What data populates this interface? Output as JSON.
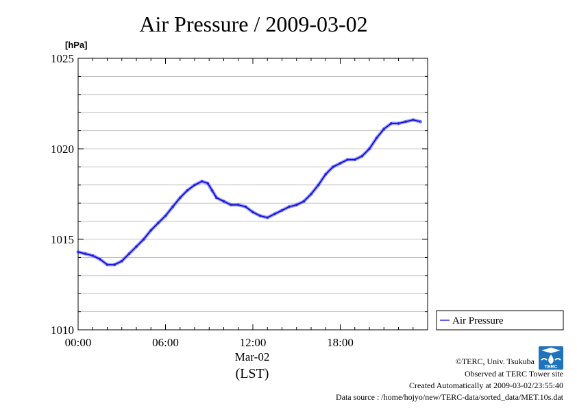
{
  "colors": {
    "series": "#2b2bff",
    "series_dark": "#00008b",
    "grid": "#999999",
    "logo": "#1e73be"
  },
  "chart_data": {
    "type": "line",
    "title": "Air Pressure / 2009-03-02",
    "ylabel": "[hPa]",
    "xlabel": "(LST)",
    "xlabel_sub": "Mar-02",
    "xlim": [
      0,
      24
    ],
    "ylim": [
      1010,
      1025
    ],
    "x_ticks": [
      0,
      6,
      12,
      18
    ],
    "x_tick_labels": [
      "00:00",
      "06:00",
      "12:00",
      "18:00"
    ],
    "y_ticks": [
      1010,
      1015,
      1020,
      1025
    ],
    "y_tick_labels": [
      "1010",
      "1015",
      "1020",
      "1025"
    ],
    "grid": true,
    "legend_position": "right",
    "series": [
      {
        "name": "Air Pressure",
        "x": [
          0,
          0.5,
          1.0,
          1.5,
          2.0,
          2.5,
          3.0,
          3.5,
          4.0,
          4.5,
          5.0,
          5.5,
          6.0,
          6.5,
          7.0,
          7.5,
          8.0,
          8.5,
          8.9,
          9.2,
          9.5,
          10.0,
          10.5,
          11.0,
          11.5,
          12.0,
          12.5,
          13.0,
          13.5,
          14.0,
          14.5,
          15.0,
          15.5,
          16.0,
          16.5,
          17.0,
          17.5,
          18.0,
          18.5,
          19.0,
          19.5,
          20.0,
          20.5,
          21.0,
          21.5,
          22.0,
          22.5,
          23.0,
          23.5
        ],
        "y": [
          1014.3,
          1014.2,
          1014.1,
          1013.9,
          1013.6,
          1013.6,
          1013.8,
          1014.2,
          1014.6,
          1015.0,
          1015.5,
          1015.9,
          1016.3,
          1016.8,
          1017.3,
          1017.7,
          1018.0,
          1018.2,
          1018.1,
          1017.7,
          1017.3,
          1017.1,
          1016.9,
          1016.9,
          1016.8,
          1016.5,
          1016.3,
          1016.2,
          1016.4,
          1016.6,
          1016.8,
          1016.9,
          1017.1,
          1017.5,
          1018.0,
          1018.6,
          1019.0,
          1019.2,
          1019.4,
          1019.4,
          1019.6,
          1020.0,
          1020.6,
          1021.1,
          1021.4,
          1021.4,
          1021.5,
          1021.6,
          1021.5
        ]
      }
    ]
  },
  "legend": {
    "label": "Air Pressure"
  },
  "footer": {
    "copyright": "©TERC, Univ. Tsukuba",
    "observed": "Observed at TERC Tower site",
    "created": "Created Automatically at 2009-03-02/23:55:40",
    "source": "Data source : /home/hojyo/new/TERC-data/sorted_data/MET.10s.dat",
    "logo_text": "TERC"
  }
}
